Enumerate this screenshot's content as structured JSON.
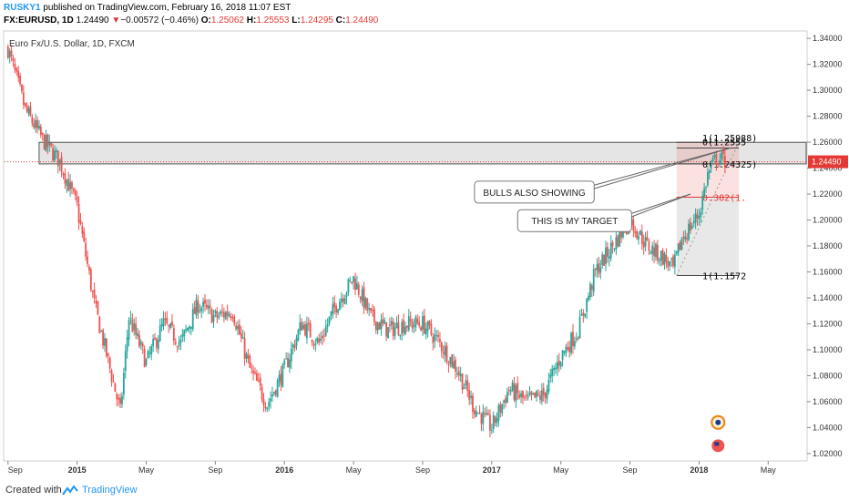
{
  "header": {
    "author": "RUSKY1",
    "published": " published on TradingView.com, February 16, 2018 11:07 EST",
    "symbol": "FX:EURUSD, 1D",
    "last": "1.24490",
    "arrow": "▼",
    "change": "−0.00572 (−0.46%)",
    "o_label": "O:",
    "o_val": "1.25062",
    "h_label": "H:",
    "h_val": "1.25553",
    "l_label": "L:",
    "l_val": "1.24295",
    "c_label": "C:",
    "c_val": "1.24490"
  },
  "footer": {
    "created": "Created with",
    "brand": "TradingView"
  },
  "chart_data": {
    "type": "candlestick",
    "title": "Euro Fx/U.S. Dollar, 1D, FXCM",
    "ylim": [
      1.015,
      1.345
    ],
    "y_ticks": [
      "1.34000",
      "1.32000",
      "1.30000",
      "1.28000",
      "1.26000",
      "1.24000",
      "1.22000",
      "1.20000",
      "1.18000",
      "1.16000",
      "1.14000",
      "1.12000",
      "1.10000",
      "1.08000",
      "1.06000",
      "1.04000",
      "1.02000"
    ],
    "x_ticks": [
      {
        "label": "Sep",
        "m": 0
      },
      {
        "label": "2015",
        "m": 4
      },
      {
        "label": "May",
        "m": 8
      },
      {
        "label": "Sep",
        "m": 12
      },
      {
        "label": "2016",
        "m": 16
      },
      {
        "label": "May",
        "m": 20
      },
      {
        "label": "Sep",
        "m": 24
      },
      {
        "label": "2017",
        "m": 28
      },
      {
        "label": "May",
        "m": 32
      },
      {
        "label": "Sep",
        "m": 36
      },
      {
        "label": "2018",
        "m": 40
      },
      {
        "label": "May",
        "m": 44
      }
    ],
    "x_range_months": [
      -0.2,
      46.2
    ],
    "last_price": 1.2449,
    "last_price_label": "1.24490",
    "price_path": [
      [
        0,
        1.332
      ],
      [
        1,
        1.285
      ],
      [
        2,
        1.262
      ],
      [
        3,
        1.245
      ],
      [
        4,
        1.21
      ],
      [
        5,
        1.135
      ],
      [
        6,
        1.08
      ],
      [
        6.5,
        1.052
      ],
      [
        7,
        1.125
      ],
      [
        8,
        1.09
      ],
      [
        9,
        1.12
      ],
      [
        10,
        1.105
      ],
      [
        11,
        1.135
      ],
      [
        12,
        1.125
      ],
      [
        13,
        1.13
      ],
      [
        14,
        1.085
      ],
      [
        15,
        1.058
      ],
      [
        16,
        1.085
      ],
      [
        17,
        1.12
      ],
      [
        18,
        1.105
      ],
      [
        19,
        1.135
      ],
      [
        20,
        1.155
      ],
      [
        21,
        1.125
      ],
      [
        22,
        1.115
      ],
      [
        23,
        1.12
      ],
      [
        24,
        1.12
      ],
      [
        25,
        1.105
      ],
      [
        26,
        1.085
      ],
      [
        27,
        1.055
      ],
      [
        28,
        1.04
      ],
      [
        29,
        1.07
      ],
      [
        30,
        1.06
      ],
      [
        31,
        1.065
      ],
      [
        32,
        1.095
      ],
      [
        33,
        1.115
      ],
      [
        34,
        1.16
      ],
      [
        35,
        1.18
      ],
      [
        36,
        1.2
      ],
      [
        37,
        1.18
      ],
      [
        38,
        1.17
      ],
      [
        38.5,
        1.162
      ],
      [
        39,
        1.185
      ],
      [
        40,
        1.205
      ],
      [
        40.5,
        1.235
      ],
      [
        41,
        1.248
      ],
      [
        41.6,
        1.2449
      ]
    ],
    "rect_upper": {
      "m0": 1.8,
      "m1": 46.2,
      "y0": 1.24325,
      "y1": 1.25988
    },
    "fib": {
      "m0": 38.7,
      "m1": 42.3,
      "levels": [
        {
          "y": 1.25988,
          "label": "1(1.25988)",
          "color": "#000000"
        },
        {
          "y": 1.2555,
          "label": "0(1.2555",
          "color": "#000000"
        },
        {
          "y": 1.24325,
          "label": "0(1.24325)",
          "color": "#000000"
        },
        {
          "y": 1.2176,
          "label": "0.382(1.",
          "color": "#e53935"
        },
        {
          "y": 1.1572,
          "label": "1(1.1572",
          "color": "#000000"
        }
      ]
    },
    "annotations": [
      {
        "text": "BULLS ALSO SHOWING",
        "m": 27.0,
        "y": 1.2215,
        "target_m": 41.8,
        "target_y": 1.2555
      },
      {
        "text": "THIS IS MY TARGET",
        "m": 29.5,
        "y": 1.1995,
        "target_m": 39.5,
        "target_y": 1.22
      }
    ],
    "price_line": {
      "y": 1.2449,
      "color": "#e53935",
      "style": "dotted"
    }
  }
}
